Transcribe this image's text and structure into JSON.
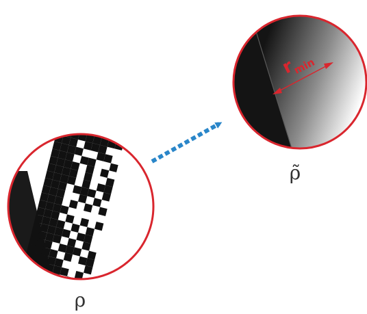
{
  "colors": {
    "circle_border": "#d9262e",
    "arrow": "#2a86c9",
    "dark_fill": "#1a1a1a",
    "annotation": "#d9262e",
    "label": "#333333"
  },
  "left_panel": {
    "label": "ρ",
    "pattern_icon": "checkerboard-pixel-pattern"
  },
  "arrow": {
    "icon": "dashed-arrow-icon"
  },
  "right_panel": {
    "label": "ρ̃",
    "annotation_main": "r",
    "annotation_sub": "min",
    "pattern_icon": "gradient-fill-pattern"
  }
}
